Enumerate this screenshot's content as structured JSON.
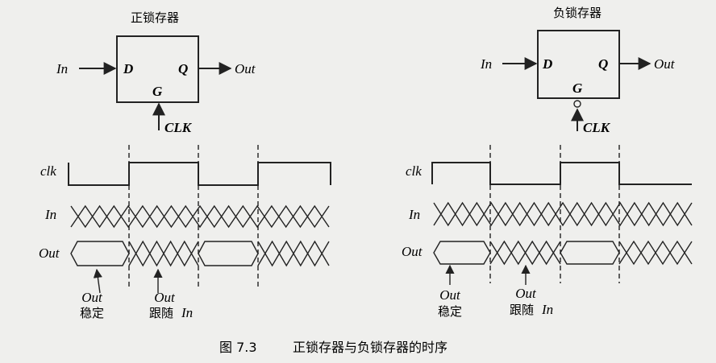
{
  "positive_latch": {
    "title": "正锁存器",
    "input_label": "In",
    "output_label": "Out",
    "pin_d": "D",
    "pin_q": "Q",
    "pin_g": "G",
    "clock_label": "CLK",
    "signals": {
      "clk": "clk",
      "in": "In",
      "out": "Out"
    },
    "annotation_stable": {
      "signal": "Out",
      "text": "稳定"
    },
    "annotation_follow": {
      "signal": "Out",
      "text": "跟随",
      "ref": "In"
    }
  },
  "negative_latch": {
    "title": "负锁存器",
    "input_label": "In",
    "output_label": "Out",
    "pin_d": "D",
    "pin_q": "Q",
    "pin_g": "G",
    "clock_label": "CLK",
    "signals": {
      "clk": "clk",
      "in": "In",
      "out": "Out"
    },
    "annotation_stable": {
      "signal": "Out",
      "text": "稳定"
    },
    "annotation_follow": {
      "signal": "Out",
      "text": "跟随",
      "ref": "In"
    }
  },
  "caption": {
    "number": "图 7.3",
    "text": "正锁存器与负锁存器的时序"
  }
}
